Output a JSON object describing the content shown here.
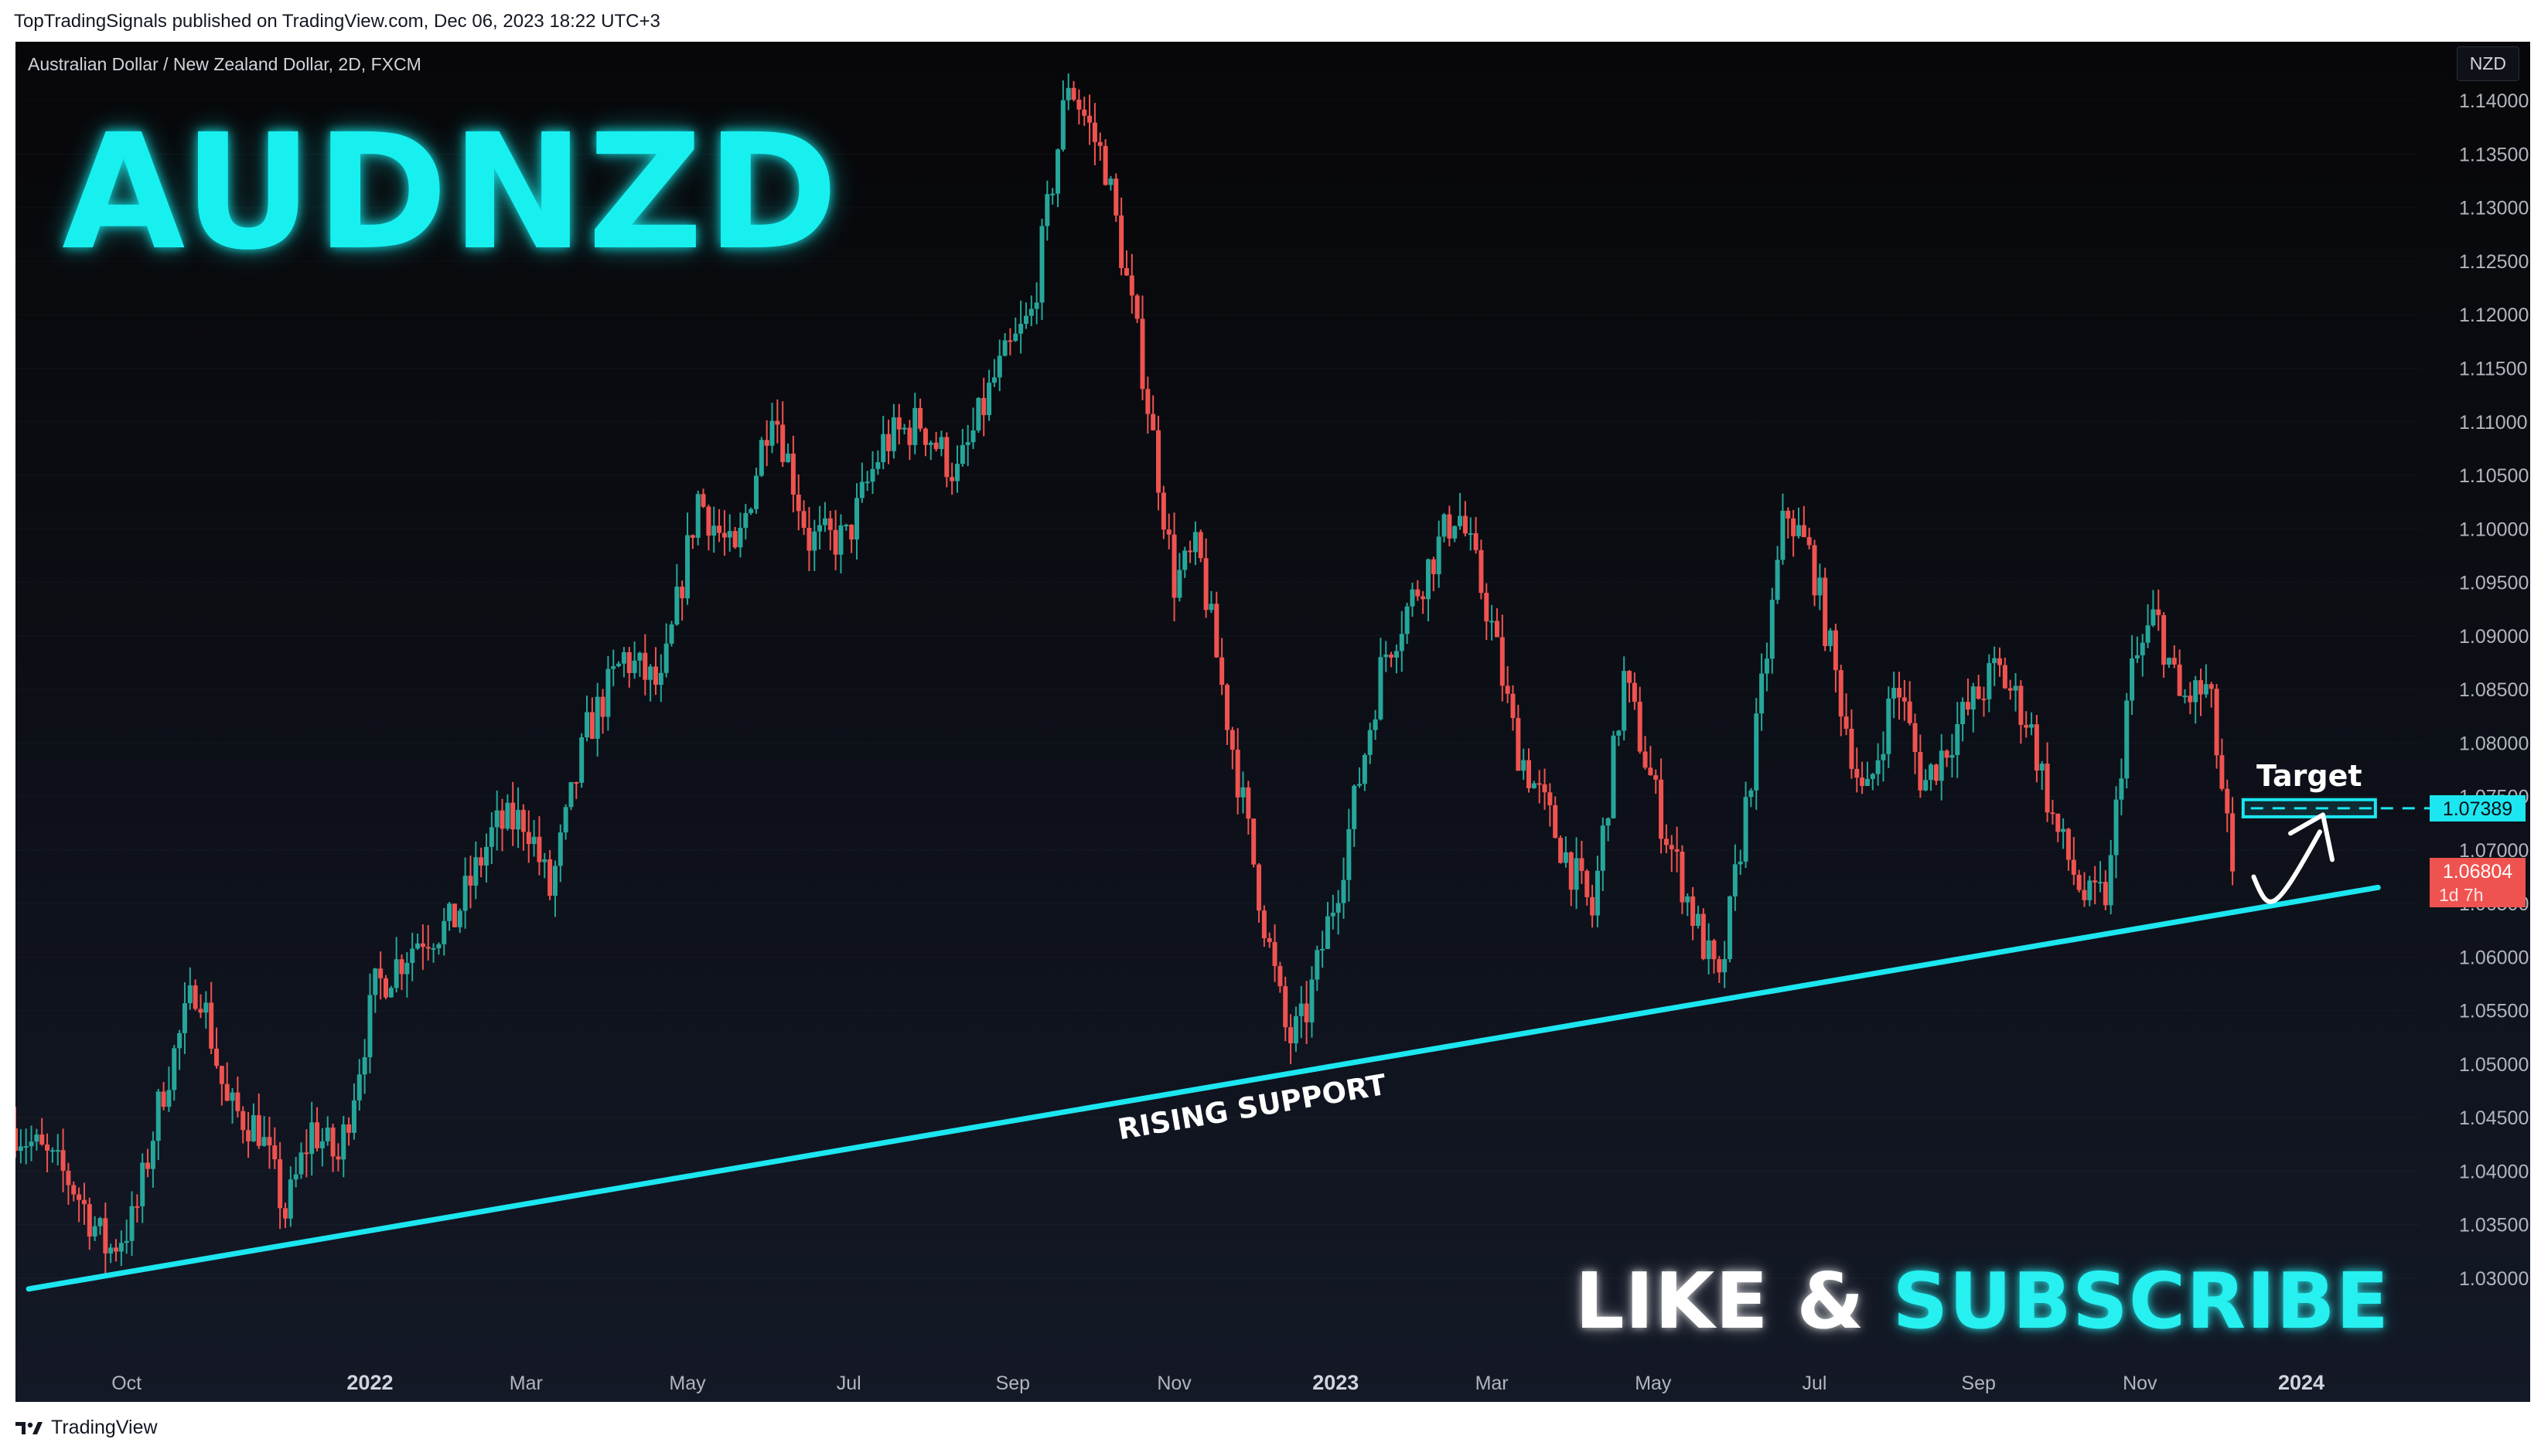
{
  "header": {
    "published_line": "TopTradingSignals published on TradingView.com, Dec 06, 2023 18:22 UTC+3"
  },
  "chart_header": {
    "symbol_line": "Australian Dollar / New Zealand Dollar, 2D, FXCM",
    "currency_button": "NZD"
  },
  "overlay": {
    "title": "AUDNZD",
    "cta_white": "LIKE & ",
    "cta_cyan": "SUBSCRIBE",
    "support_label": "RISING SUPPORT",
    "target_label": "Target"
  },
  "footer": {
    "brand": "TradingView"
  },
  "chart_data": {
    "type": "candlestick",
    "instrument": "AUDNZD",
    "timeframe": "2D",
    "x_tick_labels": [
      "Oct",
      "2022",
      "Mar",
      "May",
      "Jul",
      "Sep",
      "Nov",
      "2023",
      "Mar",
      "May",
      "Jul",
      "Sep",
      "Nov",
      "2024"
    ],
    "x_tick_dates": [
      "2021-10-01",
      "2022-01-01",
      "2022-03-01",
      "2022-05-01",
      "2022-07-01",
      "2022-09-01",
      "2022-11-01",
      "2023-01-01",
      "2023-03-01",
      "2023-05-01",
      "2023-07-01",
      "2023-09-01",
      "2023-11-01",
      "2024-01-01"
    ],
    "x_range": [
      "2021-08-20",
      "2024-02-15"
    ],
    "y_range": [
      1.0235,
      1.1455
    ],
    "y_ticks": [
      1.03,
      1.035,
      1.04,
      1.045,
      1.05,
      1.055,
      1.06,
      1.065,
      1.07,
      1.075,
      1.08,
      1.085,
      1.09,
      1.095,
      1.1,
      1.105,
      1.11,
      1.115,
      1.12,
      1.125,
      1.13,
      1.135,
      1.14
    ],
    "y_tick_labels": [
      "1.03000",
      "1.03500",
      "1.04000",
      "1.04500",
      "1.05000",
      "1.05500",
      "1.06000",
      "1.06500",
      "1.07000",
      "1.07500",
      "1.08000",
      "1.08500",
      "1.09000",
      "1.09500",
      "1.10000",
      "1.10500",
      "1.11000",
      "1.11500",
      "1.12000",
      "1.12500",
      "1.13000",
      "1.13500",
      "1.14000"
    ],
    "colors": {
      "up": "#26a69a",
      "down": "#ef5350",
      "accent": "#1ce6f0"
    },
    "price_path": [
      [
        "2021-08-20",
        1.044
      ],
      [
        "2021-09-10",
        1.039
      ],
      [
        "2021-09-24",
        1.0325
      ],
      [
        "2021-10-04",
        1.0355
      ],
      [
        "2021-10-14",
        1.047
      ],
      [
        "2021-10-28",
        1.058
      ],
      [
        "2021-11-08",
        1.046
      ],
      [
        "2021-11-20",
        1.044
      ],
      [
        "2021-11-30",
        1.036
      ],
      [
        "2021-12-10",
        1.044
      ],
      [
        "2021-12-20",
        1.041
      ],
      [
        "2022-01-03",
        1.057
      ],
      [
        "2022-01-20",
        1.062
      ],
      [
        "2022-02-01",
        1.063
      ],
      [
        "2022-02-17",
        1.072
      ],
      [
        "2022-03-01",
        1.073
      ],
      [
        "2022-03-10",
        1.066
      ],
      [
        "2022-03-24",
        1.081
      ],
      [
        "2022-04-07",
        1.088
      ],
      [
        "2022-04-21",
        1.085
      ],
      [
        "2022-05-05",
        1.103
      ],
      [
        "2022-05-19",
        1.097
      ],
      [
        "2022-06-02",
        1.112
      ],
      [
        "2022-06-16",
        1.099
      ],
      [
        "2022-06-30",
        1.099
      ],
      [
        "2022-07-14",
        1.108
      ],
      [
        "2022-07-28",
        1.11
      ],
      [
        "2022-08-11",
        1.105
      ],
      [
        "2022-08-25",
        1.114
      ],
      [
        "2022-09-08",
        1.12
      ],
      [
        "2022-09-22",
        1.142
      ],
      [
        "2022-10-06",
        1.134
      ],
      [
        "2022-10-20",
        1.115
      ],
      [
        "2022-11-01",
        1.095
      ],
      [
        "2022-11-10",
        1.098
      ],
      [
        "2022-11-22",
        1.081
      ],
      [
        "2022-12-06",
        1.062
      ],
      [
        "2022-12-14",
        1.052
      ],
      [
        "2022-12-20",
        1.054
      ],
      [
        "2023-01-03",
        1.068
      ],
      [
        "2023-01-19",
        1.088
      ],
      [
        "2023-02-02",
        1.095
      ],
      [
        "2023-02-16",
        1.102
      ],
      [
        "2023-02-28",
        1.092
      ],
      [
        "2023-03-10",
        1.08
      ],
      [
        "2023-03-28",
        1.07
      ],
      [
        "2023-04-08",
        1.064
      ],
      [
        "2023-04-20",
        1.086
      ],
      [
        "2023-05-04",
        1.073
      ],
      [
        "2023-05-16",
        1.064
      ],
      [
        "2023-05-26",
        1.057
      ],
      [
        "2023-06-08",
        1.079
      ],
      [
        "2023-06-20",
        1.102
      ],
      [
        "2023-06-30",
        1.097
      ],
      [
        "2023-07-10",
        1.085
      ],
      [
        "2023-07-20",
        1.074
      ],
      [
        "2023-08-01",
        1.086
      ],
      [
        "2023-08-11",
        1.076
      ],
      [
        "2023-08-25",
        1.082
      ],
      [
        "2023-09-08",
        1.087
      ],
      [
        "2023-09-20",
        1.082
      ],
      [
        "2023-09-30",
        1.072
      ],
      [
        "2023-10-12",
        1.065
      ],
      [
        "2023-10-20",
        1.066
      ],
      [
        "2023-10-28",
        1.086
      ],
      [
        "2023-11-07",
        1.092
      ],
      [
        "2023-11-16",
        1.084
      ],
      [
        "2023-11-27",
        1.085
      ],
      [
        "2023-12-06",
        1.068
      ]
    ],
    "rising_support_line": [
      [
        "2021-08-25",
        1.029
      ],
      [
        "2024-01-30",
        1.0665
      ]
    ],
    "target_zone": {
      "from": "2023-12-10",
      "to": "2024-01-29",
      "low": 1.0731,
      "high": 1.0747
    },
    "price_labels": [
      {
        "value": "1.07389",
        "type": "target"
      },
      {
        "value": "1.06804",
        "type": "last",
        "countdown": "1d 7h"
      }
    ]
  }
}
